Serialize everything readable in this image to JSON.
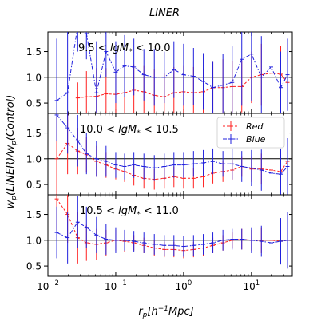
{
  "chart_data": {
    "type": "line",
    "title": "LINER",
    "xlabel": "r_p[h^{-1}Mpc]",
    "ylabel": "w_p(LINER)/w_p(Control)",
    "xscale": "log",
    "xlim": [
      0.01,
      40
    ],
    "ylim": [
      0.3,
      1.88
    ],
    "x_ticks": [
      {
        "value": 0.01,
        "base": "10",
        "exp": "−2"
      },
      {
        "value": 0.1,
        "base": "10",
        "exp": "−1"
      },
      {
        "value": 1,
        "base": "10",
        "exp": "0"
      },
      {
        "value": 10,
        "base": "10",
        "exp": "1"
      }
    ],
    "y_ticks": [
      "0.5",
      "1.0",
      "1.5"
    ],
    "reference_line": 1.0,
    "legend": {
      "placement": "top-right of middle panel",
      "entries": [
        "Red",
        "Blue"
      ]
    },
    "colors": {
      "Red": "#ff2020",
      "Blue": "#2020dd",
      "reference": "#000000"
    },
    "x": [
      0.0135,
      0.0195,
      0.0275,
      0.037,
      0.052,
      0.072,
      0.1,
      0.135,
      0.185,
      0.26,
      0.37,
      0.52,
      0.72,
      1.0,
      1.4,
      1.95,
      2.7,
      3.8,
      5.2,
      7.2,
      10,
      14,
      19.5,
      27,
      34
    ],
    "panels": [
      {
        "label_text": "9.5 < lgM_* < 10.0",
        "series": [
          {
            "name": "Red",
            "values": [
              null,
              null,
              0.6,
              0.62,
              0.63,
              0.68,
              0.67,
              0.7,
              0.75,
              0.72,
              0.65,
              0.62,
              0.7,
              0.72,
              0.7,
              0.72,
              0.8,
              0.8,
              0.82,
              0.82,
              1.0,
              1.05,
              1.08,
              1.06,
              0.9
            ],
            "errors": [
              0,
              0,
              0.3,
              0.5,
              0.55,
              0.5,
              0.5,
              0.5,
              0.5,
              0.5,
              0.5,
              0.45,
              0.5,
              0.5,
              0.5,
              0.45,
              0.5,
              0.55,
              0.5,
              0.5,
              0.5,
              0.6,
              0.6,
              0.55,
              0.5
            ]
          },
          {
            "name": "Blue",
            "values": [
              0.55,
              0.7,
              2.0,
              1.85,
              0.7,
              1.5,
              1.1,
              1.22,
              1.2,
              1.05,
              1.0,
              1.0,
              1.15,
              1.05,
              1.02,
              0.92,
              0.8,
              0.85,
              0.9,
              1.35,
              1.45,
              1.0,
              1.2,
              0.8,
              1.05
            ],
            "errors": [
              1.2,
              1.2,
              0.5,
              0.5,
              1.0,
              0.5,
              0.6,
              0.6,
              0.55,
              0.5,
              0.55,
              0.5,
              0.55,
              0.6,
              0.55,
              0.55,
              0.5,
              0.6,
              0.7,
              0.9,
              0.9,
              0.8,
              0.9,
              0.7,
              0.7
            ]
          }
        ]
      },
      {
        "label_text": "10.0 < lgM_* < 10.5",
        "series": [
          {
            "name": "Red",
            "values": [
              1.0,
              1.3,
              1.15,
              1.08,
              0.95,
              0.88,
              0.8,
              0.75,
              0.68,
              0.62,
              0.6,
              0.62,
              0.65,
              0.62,
              0.62,
              0.65,
              0.72,
              0.75,
              0.78,
              0.85,
              0.8,
              0.8,
              0.78,
              0.75,
              0.95
            ],
            "errors": [
              0.8,
              0.6,
              0.45,
              0.35,
              0.3,
              0.25,
              0.2,
              0.2,
              0.2,
              0.2,
              0.2,
              0.2,
              0.2,
              0.2,
              0.2,
              0.2,
              0.2,
              0.2,
              0.2,
              0.2,
              0.25,
              0.3,
              0.35,
              0.4,
              0.4
            ]
          },
          {
            "name": "Blue",
            "values": [
              1.85,
              1.6,
              1.35,
              1.1,
              1.0,
              0.95,
              0.88,
              0.85,
              0.88,
              0.85,
              0.82,
              0.85,
              0.88,
              0.88,
              0.9,
              0.92,
              0.95,
              0.9,
              0.9,
              0.85,
              0.82,
              0.78,
              0.72,
              0.7,
              0.85
            ],
            "errors": [
              0.5,
              0.5,
              0.5,
              0.4,
              0.35,
              0.3,
              0.25,
              0.25,
              0.25,
              0.25,
              0.25,
              0.25,
              0.25,
              0.25,
              0.25,
              0.25,
              0.25,
              0.25,
              0.3,
              0.3,
              0.35,
              0.4,
              0.45,
              0.5,
              0.55
            ]
          }
        ]
      },
      {
        "label_text": "10.5 < lgM_* < 11.0",
        "series": [
          {
            "name": "Red",
            "values": [
              1.8,
              1.5,
              1.05,
              0.95,
              0.92,
              0.95,
              1.0,
              0.98,
              0.95,
              0.9,
              0.85,
              0.82,
              0.82,
              0.8,
              0.82,
              0.85,
              0.9,
              0.95,
              1.0,
              1.02,
              1.0,
              1.0,
              1.0,
              0.98,
              1.0
            ],
            "errors": [
              0.6,
              0.55,
              0.5,
              0.35,
              0.3,
              0.25,
              0.2,
              0.2,
              0.15,
              0.15,
              0.15,
              0.15,
              0.15,
              0.15,
              0.15,
              0.15,
              0.15,
              0.15,
              0.15,
              0.2,
              0.2,
              0.25,
              0.3,
              0.35,
              0.4
            ]
          },
          {
            "name": "Blue",
            "values": [
              1.15,
              1.05,
              1.35,
              1.25,
              1.1,
              1.02,
              1.0,
              1.0,
              0.98,
              0.95,
              0.92,
              0.9,
              0.9,
              0.88,
              0.9,
              0.92,
              0.95,
              1.0,
              1.02,
              1.02,
              1.0,
              0.98,
              0.95,
              0.98,
              1.0
            ],
            "errors": [
              0.5,
              0.5,
              0.5,
              0.4,
              0.35,
              0.3,
              0.25,
              0.2,
              0.2,
              0.2,
              0.2,
              0.2,
              0.2,
              0.2,
              0.2,
              0.2,
              0.2,
              0.2,
              0.2,
              0.2,
              0.25,
              0.3,
              0.35,
              0.45,
              0.55
            ]
          }
        ]
      }
    ]
  }
}
